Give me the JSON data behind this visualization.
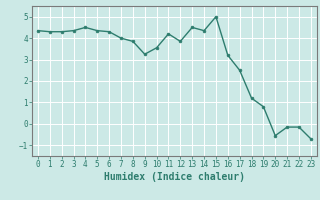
{
  "x": [
    0,
    1,
    2,
    3,
    4,
    5,
    6,
    7,
    8,
    9,
    10,
    11,
    12,
    13,
    14,
    15,
    16,
    17,
    18,
    19,
    20,
    21,
    22,
    23
  ],
  "y": [
    4.35,
    4.3,
    4.3,
    4.35,
    4.5,
    4.35,
    4.3,
    4.0,
    3.85,
    3.25,
    3.55,
    4.2,
    3.85,
    4.5,
    4.35,
    5.0,
    3.2,
    2.5,
    1.2,
    0.8,
    -0.55,
    -0.15,
    -0.15,
    -0.7
  ],
  "line_color": "#2e7d6e",
  "marker": "o",
  "markersize": 2.0,
  "linewidth": 1.0,
  "bg_color": "#cce9e6",
  "grid_color": "#ffffff",
  "xlabel": "Humidex (Indice chaleur)",
  "xlim": [
    -0.5,
    23.5
  ],
  "ylim": [
    -1.5,
    5.5
  ],
  "yticks": [
    -1,
    0,
    1,
    2,
    3,
    4,
    5
  ],
  "xticks": [
    0,
    1,
    2,
    3,
    4,
    5,
    6,
    7,
    8,
    9,
    10,
    11,
    12,
    13,
    14,
    15,
    16,
    17,
    18,
    19,
    20,
    21,
    22,
    23
  ],
  "tick_color": "#2e7d6e",
  "tick_fontsize": 5.5,
  "label_fontsize": 7.0,
  "spine_color": "#7a7a7a"
}
